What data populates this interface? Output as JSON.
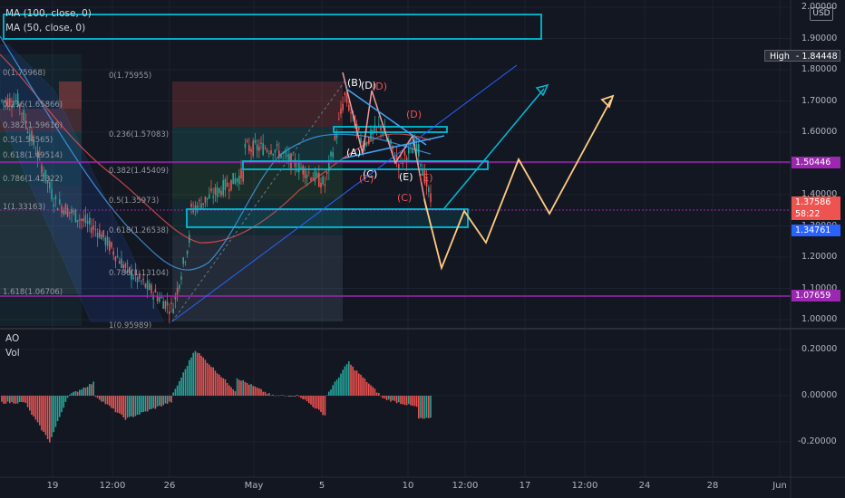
{
  "currency": "USD",
  "legend": {
    "ma100": "MA (100, close, 0)",
    "ma50": "MA (50, close, 0)",
    "ao": "AO",
    "vol": "Vol"
  },
  "price_axis": {
    "ticks": [
      "2.00000",
      "1.90000",
      "1.80000",
      "1.70000",
      "1.60000",
      "1.50000",
      "1.40000",
      "1.30000",
      "1.20000",
      "1.10000",
      "1.00000"
    ],
    "high_label": "High",
    "high_value": "1.84448",
    "badges": [
      {
        "value": "1.50446",
        "color": "#9c27b0"
      },
      {
        "value": "1.37586",
        "color": "#ef5350"
      },
      {
        "value": "58:22",
        "color": "#ef5350"
      },
      {
        "value": "1.34761",
        "color": "#2962ff"
      },
      {
        "value": "1.07659",
        "color": "#9c27b0"
      }
    ]
  },
  "ao_axis": {
    "ticks": [
      "0.20000",
      "0.00000",
      "-0.20000"
    ]
  },
  "time_axis": {
    "labels": [
      "19",
      "12:00",
      "26",
      "May",
      "5",
      "10",
      "12:00",
      "17",
      "12:00",
      "24",
      "28",
      "Jun"
    ]
  },
  "fib_left": {
    "levels": [
      "0(1.75968)",
      "0.236(1.65866)",
      "0.382(1.59616)",
      "0.5(1.54565)",
      "0.618(1.49514)",
      "0.786(1.42322)",
      "1(1.33163)",
      "1.618(1.06706)"
    ]
  },
  "fib_right": {
    "levels": [
      "0(1.75955)",
      "0.236(1.57083)",
      "0.382(1.45409)",
      "0.5(1.35973)",
      "0.618(1.26538)",
      "0.786(1.13104)",
      "1(0.95989)"
    ]
  },
  "wave_labels": [
    "(B)",
    "(D)",
    "(D)",
    "(A)",
    "(C)",
    "(C)",
    "(E)",
    "(C)",
    "(E)"
  ],
  "colors": {
    "background": "#131722",
    "cyan": "#00bcd4",
    "purple": "#9c27b0",
    "up": "#26a69a",
    "down": "#ef5350",
    "orange_path": "#ffcc80"
  }
}
